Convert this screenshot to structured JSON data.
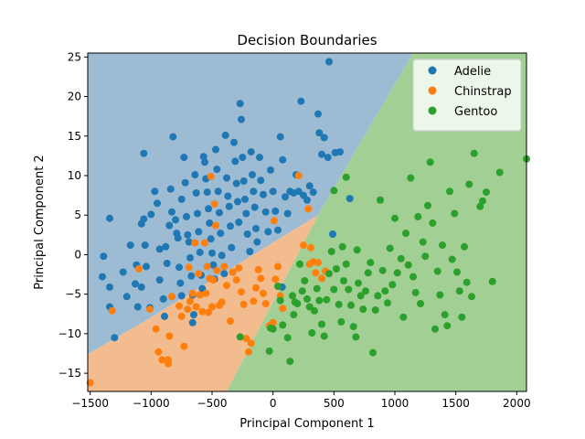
{
  "chart_data": {
    "type": "scatter",
    "title": "Decision Boundaries",
    "xlabel": "Principal Component 1",
    "ylabel": "Principal Component 2",
    "xlim": [
      -1520,
      2080
    ],
    "ylim": [
      -17.3,
      25.5
    ],
    "x_ticks": [
      -1500,
      -1000,
      -500,
      0,
      500,
      1000,
      1500,
      2000
    ],
    "y_ticks": [
      -15,
      -10,
      -5,
      0,
      5,
      10,
      15,
      20,
      25
    ],
    "grid": false,
    "legend_position": "top-right",
    "regions": [
      {
        "name": "Adelie",
        "color": "#9dbcd4",
        "polygon": [
          [
            -1520,
            25.5
          ],
          [
            1150,
            25.5
          ],
          [
            370,
            5
          ],
          [
            -1040,
            -8.3
          ],
          [
            -1520,
            -12.6
          ]
        ]
      },
      {
        "name": "Chinstrap",
        "color": "#f3bc8f",
        "polygon": [
          [
            -1520,
            -12.6
          ],
          [
            -1040,
            -8.3
          ],
          [
            370,
            5
          ],
          [
            -380,
            -17.3
          ],
          [
            -1520,
            -17.3
          ]
        ]
      },
      {
        "name": "Gentoo",
        "color": "#a2cf93",
        "polygon": [
          [
            1150,
            25.5
          ],
          [
            2080,
            25.5
          ],
          [
            2080,
            -17.3
          ],
          [
            -380,
            -17.3
          ],
          [
            370,
            5
          ]
        ]
      }
    ],
    "series": [
      {
        "name": "Adelie",
        "color": "#1f77b4",
        "points": [
          [
            -1340,
            4.6
          ],
          [
            -1390,
            -0.2
          ],
          [
            -1400,
            -2.8
          ],
          [
            -1340,
            -4.1
          ],
          [
            -1340,
            -6.6
          ],
          [
            -1300,
            -10.5
          ],
          [
            -1230,
            -2.2
          ],
          [
            -1200,
            -5.3
          ],
          [
            -1170,
            1.2
          ],
          [
            -1120,
            -1.3
          ],
          [
            -1130,
            -3.7
          ],
          [
            -1110,
            -6.6
          ],
          [
            -1080,
            3.9
          ],
          [
            -1060,
            4.5
          ],
          [
            -1050,
            1.2
          ],
          [
            -1040,
            -1.5
          ],
          [
            -1010,
            -6.7
          ],
          [
            -1080,
            -4.1
          ],
          [
            -1060,
            12.8
          ],
          [
            -1000,
            5.1
          ],
          [
            -970,
            8.0
          ],
          [
            -950,
            6.5
          ],
          [
            -930,
            0.7
          ],
          [
            -930,
            -3.2
          ],
          [
            -900,
            -5.6
          ],
          [
            -890,
            -7.8
          ],
          [
            -880,
            1.0
          ],
          [
            -870,
            -1.1
          ],
          [
            -850,
            3.7
          ],
          [
            -840,
            8.3
          ],
          [
            -830,
            5.4
          ],
          [
            -820,
            14.9
          ],
          [
            -800,
            4.4
          ],
          [
            -790,
            2.7
          ],
          [
            -780,
            2.1
          ],
          [
            -770,
            -1.6
          ],
          [
            -760,
            -3.6
          ],
          [
            -750,
            -5.2
          ],
          [
            -750,
            7.0
          ],
          [
            -730,
            12.3
          ],
          [
            -720,
            9.1
          ],
          [
            -710,
            4.8
          ],
          [
            -700,
            2.5
          ],
          [
            -690,
            1.6
          ],
          [
            -680,
            -0.4
          ],
          [
            -670,
            -2.7
          ],
          [
            -660,
            -5.1
          ],
          [
            -660,
            -8.6
          ],
          [
            -650,
            -7.6
          ],
          [
            -640,
            10.1
          ],
          [
            -630,
            7.8
          ],
          [
            -620,
            5.2
          ],
          [
            -610,
            2.9
          ],
          [
            -600,
            0.3
          ],
          [
            -590,
            -2.6
          ],
          [
            -580,
            -4.3
          ],
          [
            -570,
            12.4
          ],
          [
            -560,
            11.7
          ],
          [
            -550,
            9.6
          ],
          [
            -540,
            7.9
          ],
          [
            -530,
            5.8
          ],
          [
            -520,
            4.0
          ],
          [
            -510,
            2.0
          ],
          [
            -500,
            0.2
          ],
          [
            -490,
            -1.3
          ],
          [
            -480,
            -3.1
          ],
          [
            -470,
            13.3
          ],
          [
            -460,
            10.8
          ],
          [
            -450,
            8.0
          ],
          [
            -440,
            5.3
          ],
          [
            -430,
            2.7
          ],
          [
            -420,
            -0.1
          ],
          [
            -400,
            -2.4
          ],
          [
            -390,
            15.1
          ],
          [
            -380,
            9.7
          ],
          [
            -370,
            7.4
          ],
          [
            -360,
            6.1
          ],
          [
            -350,
            3.6
          ],
          [
            -340,
            0.9
          ],
          [
            -330,
            -2.2
          ],
          [
            -320,
            14.2
          ],
          [
            -310,
            11.8
          ],
          [
            -300,
            9.0
          ],
          [
            -290,
            6.7
          ],
          [
            -280,
            4.1
          ],
          [
            -270,
            19.1
          ],
          [
            -260,
            17.1
          ],
          [
            -250,
            12.3
          ],
          [
            -240,
            9.3
          ],
          [
            -230,
            7.0
          ],
          [
            -220,
            5.2
          ],
          [
            -210,
            2.6
          ],
          [
            -190,
            0.4
          ],
          [
            -180,
            13.0
          ],
          [
            -170,
            10.1
          ],
          [
            -160,
            8.0
          ],
          [
            -150,
            6.0
          ],
          [
            -140,
            3.3
          ],
          [
            -130,
            1.6
          ],
          [
            -110,
            12.3
          ],
          [
            -100,
            9.4
          ],
          [
            -80,
            7.6
          ],
          [
            -60,
            5.4
          ],
          [
            -40,
            2.9
          ],
          [
            -20,
            10.7
          ],
          [
            0,
            8.0
          ],
          [
            20,
            5.5
          ],
          [
            40,
            3.1
          ],
          [
            60,
            14.9
          ],
          [
            80,
            12.0
          ],
          [
            100,
            7.3
          ],
          [
            120,
            5.2
          ],
          [
            140,
            8.0
          ],
          [
            170,
            7.8
          ],
          [
            190,
            10.1
          ],
          [
            210,
            8.0
          ],
          [
            230,
            19.4
          ],
          [
            250,
            7.5
          ],
          [
            280,
            6.9
          ],
          [
            300,
            8.7
          ],
          [
            330,
            7.9
          ],
          [
            370,
            17.8
          ],
          [
            380,
            15.4
          ],
          [
            400,
            12.7
          ],
          [
            420,
            14.8
          ],
          [
            450,
            12.3
          ],
          [
            460,
            24.4
          ],
          [
            490,
            2.6
          ],
          [
            510,
            12.9
          ],
          [
            550,
            13.0
          ],
          [
            75,
            -4.1
          ],
          [
            630,
            7.1
          ]
        ]
      },
      {
        "name": "Chinstrap",
        "color": "#ff7f0e",
        "points": [
          [
            -1500,
            -16.2
          ],
          [
            -1320,
            -7.1
          ],
          [
            -1100,
            -1.8
          ],
          [
            -1010,
            -6.9
          ],
          [
            -960,
            -9.4
          ],
          [
            -940,
            -12.3
          ],
          [
            -910,
            -13.3
          ],
          [
            -860,
            -13.8
          ],
          [
            -860,
            -13.3
          ],
          [
            -850,
            -10.3
          ],
          [
            -830,
            -5.3
          ],
          [
            -770,
            -6.5
          ],
          [
            -750,
            -7.8
          ],
          [
            -730,
            -11.6
          ],
          [
            -700,
            -6.9
          ],
          [
            -690,
            -1.6
          ],
          [
            -680,
            -5.9
          ],
          [
            -660,
            -4.9
          ],
          [
            -640,
            1.5
          ],
          [
            -630,
            -6.6
          ],
          [
            -610,
            -2.4
          ],
          [
            -600,
            -5.1
          ],
          [
            -580,
            -7.2
          ],
          [
            -560,
            1.5
          ],
          [
            -550,
            -4.9
          ],
          [
            -540,
            -1.5
          ],
          [
            -530,
            -7.3
          ],
          [
            -520,
            -3.0
          ],
          [
            -510,
            9.9
          ],
          [
            -500,
            -6.6
          ],
          [
            -490,
            -3.2
          ],
          [
            -480,
            6.4
          ],
          [
            -470,
            3.7
          ],
          [
            -460,
            -2.0
          ],
          [
            -440,
            -6.4
          ],
          [
            -420,
            -6.0
          ],
          [
            -400,
            -1.5
          ],
          [
            -380,
            -3.9
          ],
          [
            -350,
            -8.4
          ],
          [
            -330,
            -2.2
          ],
          [
            -300,
            -3.2
          ],
          [
            -280,
            -1.7
          ],
          [
            -260,
            -4.7
          ],
          [
            -240,
            -6.3
          ],
          [
            -220,
            -10.6
          ],
          [
            -200,
            -12.3
          ],
          [
            -180,
            -11.2
          ],
          [
            -160,
            -5.9
          ],
          [
            -140,
            -4.2
          ],
          [
            -120,
            -1.9
          ],
          [
            -100,
            -3.0
          ],
          [
            -80,
            -4.9
          ],
          [
            -60,
            -6.2
          ],
          [
            -30,
            -9.0
          ],
          [
            0,
            -8.6
          ],
          [
            20,
            -3.1
          ],
          [
            40,
            -1.5
          ],
          [
            60,
            -5.2
          ],
          [
            80,
            -6.8
          ],
          [
            10,
            4.3
          ],
          [
            210,
            10.0
          ],
          [
            250,
            1.2
          ],
          [
            290,
            5.8
          ],
          [
            300,
            -1.2
          ],
          [
            310,
            0.9
          ],
          [
            330,
            -0.9
          ],
          [
            350,
            -2.3
          ],
          [
            370,
            -1.0
          ],
          [
            400,
            -3.0
          ],
          [
            430,
            -2.1
          ]
        ]
      },
      {
        "name": "Gentoo",
        "color": "#2ca02c",
        "points": [
          [
            -270,
            -10.4
          ],
          [
            -30,
            -12.2
          ],
          [
            -20,
            -9.3
          ],
          [
            0,
            -9.4
          ],
          [
            40,
            -4.0
          ],
          [
            60,
            -5.8
          ],
          [
            80,
            -8.9
          ],
          [
            120,
            -10.5
          ],
          [
            140,
            -13.5
          ],
          [
            160,
            -5.2
          ],
          [
            170,
            -7.6
          ],
          [
            180,
            -6.0
          ],
          [
            200,
            -6.2
          ],
          [
            220,
            -1.2
          ],
          [
            240,
            -4.6
          ],
          [
            260,
            -3.3
          ],
          [
            280,
            -5.6
          ],
          [
            300,
            -6.6
          ],
          [
            320,
            -9.9
          ],
          [
            340,
            -7.1
          ],
          [
            360,
            -4.3
          ],
          [
            380,
            -5.8
          ],
          [
            400,
            -8.8
          ],
          [
            420,
            -10.3
          ],
          [
            440,
            -5.7
          ],
          [
            460,
            -2.4
          ],
          [
            480,
            0.4
          ],
          [
            500,
            -4.4
          ],
          [
            520,
            -1.8
          ],
          [
            540,
            -6.3
          ],
          [
            560,
            -8.5
          ],
          [
            570,
            1.0
          ],
          [
            580,
            -3.3
          ],
          [
            600,
            -1.2
          ],
          [
            620,
            -4.4
          ],
          [
            640,
            -6.4
          ],
          [
            660,
            -9.1
          ],
          [
            680,
            -10.4
          ],
          [
            690,
            0.6
          ],
          [
            700,
            -3.6
          ],
          [
            720,
            -5.2
          ],
          [
            740,
            -6.9
          ],
          [
            760,
            -4.6
          ],
          [
            780,
            -2.3
          ],
          [
            800,
            -1.0
          ],
          [
            820,
            -12.4
          ],
          [
            840,
            -7.0
          ],
          [
            860,
            -5.2
          ],
          [
            880,
            6.9
          ],
          [
            900,
            -2.0
          ],
          [
            920,
            -4.6
          ],
          [
            940,
            -6.1
          ],
          [
            960,
            0.8
          ],
          [
            980,
            -3.8
          ],
          [
            1000,
            4.6
          ],
          [
            1020,
            -2.3
          ],
          [
            1050,
            -0.5
          ],
          [
            1070,
            -7.9
          ],
          [
            1090,
            2.7
          ],
          [
            1110,
            -1.3
          ],
          [
            1130,
            9.7
          ],
          [
            1150,
            -2.8
          ],
          [
            1170,
            -4.8
          ],
          [
            1190,
            4.8
          ],
          [
            1210,
            -6.2
          ],
          [
            1230,
            1.6
          ],
          [
            1250,
            -0.2
          ],
          [
            1270,
            6.2
          ],
          [
            1290,
            11.7
          ],
          [
            1310,
            4.0
          ],
          [
            1330,
            -9.4
          ],
          [
            1350,
            -2.1
          ],
          [
            1370,
            -5.1
          ],
          [
            1390,
            1.2
          ],
          [
            1410,
            -7.6
          ],
          [
            1430,
            -9.0
          ],
          [
            1450,
            8.0
          ],
          [
            1470,
            -0.6
          ],
          [
            1490,
            5.2
          ],
          [
            1510,
            -2.2
          ],
          [
            1530,
            -4.6
          ],
          [
            1550,
            -7.9
          ],
          [
            1570,
            1.0
          ],
          [
            1590,
            -3.5
          ],
          [
            1610,
            8.9
          ],
          [
            1630,
            -5.3
          ],
          [
            1650,
            12.8
          ],
          [
            1700,
            6.1
          ],
          [
            1720,
            6.8
          ],
          [
            1750,
            7.9
          ],
          [
            1800,
            -3.4
          ],
          [
            1860,
            10.4
          ],
          [
            2080,
            12.1
          ],
          [
            600,
            9.8
          ],
          [
            500,
            8.1
          ]
        ]
      }
    ]
  }
}
